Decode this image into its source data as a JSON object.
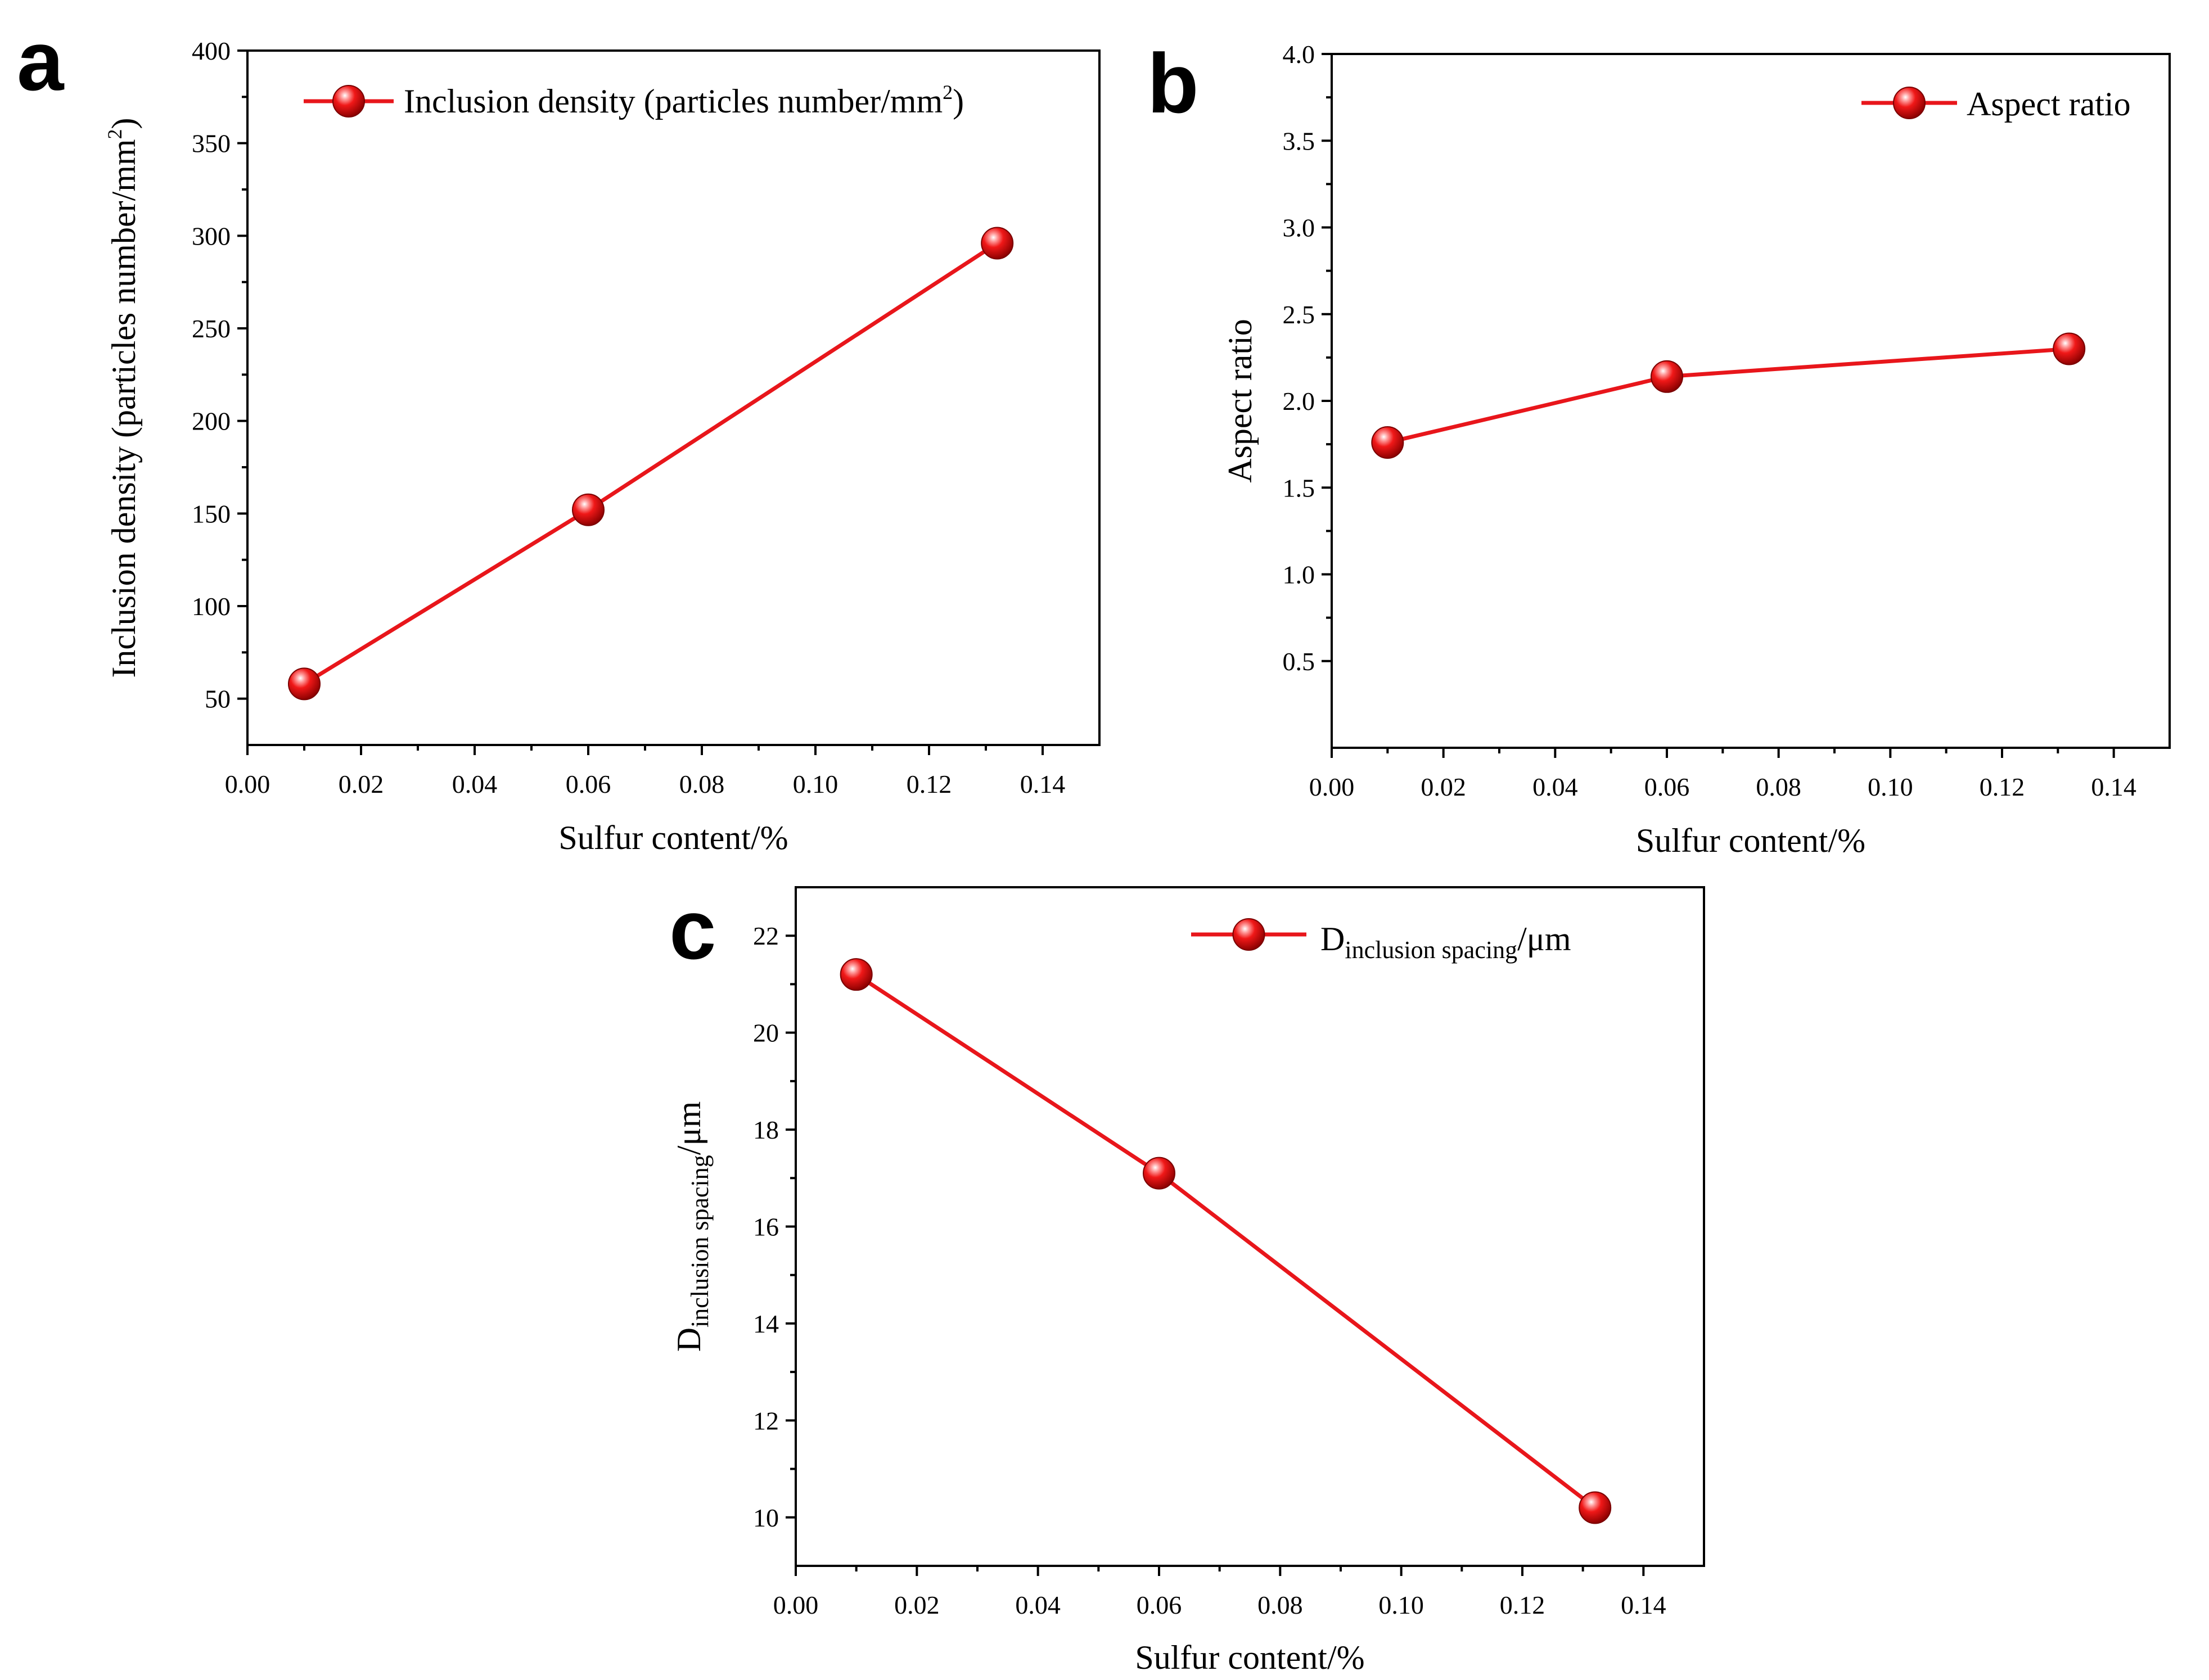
{
  "chart_data": [
    {
      "panel": "a",
      "type": "line",
      "legend": {
        "label_parts": [
          "Inclusion density (particles number/mm",
          "2",
          ")"
        ],
        "placement": "top-left"
      },
      "xlabel": "Sulfur content/%",
      "ylabel_parts": [
        "Inclusion density (particles number/mm",
        "2",
        ")"
      ],
      "xlim": [
        0.0,
        0.15
      ],
      "ylim": [
        25,
        400
      ],
      "xticks": [
        "0.00",
        "0.02",
        "0.04",
        "0.06",
        "0.08",
        "0.10",
        "0.12",
        "0.14"
      ],
      "yticks": [
        "50",
        "100",
        "150",
        "200",
        "250",
        "300",
        "350",
        "400"
      ],
      "series": [
        {
          "name": "Inclusion density (particles number/mm2)",
          "x": [
            0.01,
            0.06,
            0.132
          ],
          "y": [
            58,
            152,
            296
          ]
        }
      ],
      "color": "#e8161b"
    },
    {
      "panel": "b",
      "type": "line",
      "legend": {
        "label_parts": [
          "Aspect ratio"
        ],
        "placement": "top-right"
      },
      "xlabel": "Sulfur content/%",
      "ylabel_parts": [
        "Aspect ratio"
      ],
      "xlim": [
        0.0,
        0.15
      ],
      "ylim": [
        0.0,
        4.0
      ],
      "xticks": [
        "0.00",
        "0.02",
        "0.04",
        "0.06",
        "0.08",
        "0.10",
        "0.12",
        "0.14"
      ],
      "yticks": [
        "0.5",
        "1.0",
        "1.5",
        "2.0",
        "2.5",
        "3.0",
        "3.5",
        "4.0"
      ],
      "series": [
        {
          "name": "Aspect ratio",
          "x": [
            0.01,
            0.06,
            0.132
          ],
          "y": [
            1.76,
            2.14,
            2.3
          ]
        }
      ],
      "color": "#e8161b"
    },
    {
      "panel": "c",
      "type": "line",
      "legend": {
        "label_parts": [
          "D",
          "inclusion spacing",
          "/μm"
        ],
        "placement": "top-right"
      },
      "xlabel": "Sulfur content/%",
      "ylabel_parts": [
        "D",
        "inclusion spacing",
        "/μm"
      ],
      "xlim": [
        0.0,
        0.15
      ],
      "ylim": [
        9,
        23
      ],
      "xticks": [
        "0.00",
        "0.02",
        "0.04",
        "0.06",
        "0.08",
        "0.10",
        "0.12",
        "0.14"
      ],
      "yticks": [
        "10",
        "12",
        "14",
        "16",
        "18",
        "20",
        "22"
      ],
      "series": [
        {
          "name": "D inclusion spacing/μm",
          "x": [
            0.01,
            0.06,
            0.132
          ],
          "y": [
            21.2,
            17.1,
            10.2
          ]
        }
      ],
      "color": "#e8161b"
    }
  ]
}
